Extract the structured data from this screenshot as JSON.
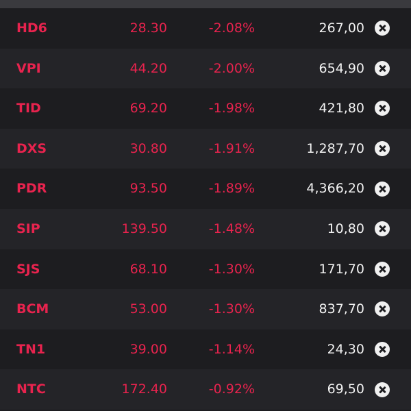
{
  "table": {
    "rows": [
      [
        "HD6",
        "28.30",
        "-2.08%",
        "267,00"
      ],
      [
        "VPI",
        "44.20",
        "-2.00%",
        "654,90"
      ],
      [
        "TID",
        "69.20",
        "-1.98%",
        "421,80"
      ],
      [
        "DXS",
        "30.80",
        "-1.91%",
        "1,287,70"
      ],
      [
        "PDR",
        "93.50",
        "-1.89%",
        "4,366,20"
      ],
      [
        "SIP",
        "139.50",
        "-1.48%",
        "10,80"
      ],
      [
        "SJS",
        "68.10",
        "-1.30%",
        "171,70"
      ],
      [
        "BCM",
        "53.00",
        "-1.30%",
        "837,70"
      ],
      [
        "TN1",
        "39.00",
        "-1.14%",
        "24,30"
      ],
      [
        "NTC",
        "172.40",
        "-0.92%",
        "69,50"
      ]
    ]
  }
}
